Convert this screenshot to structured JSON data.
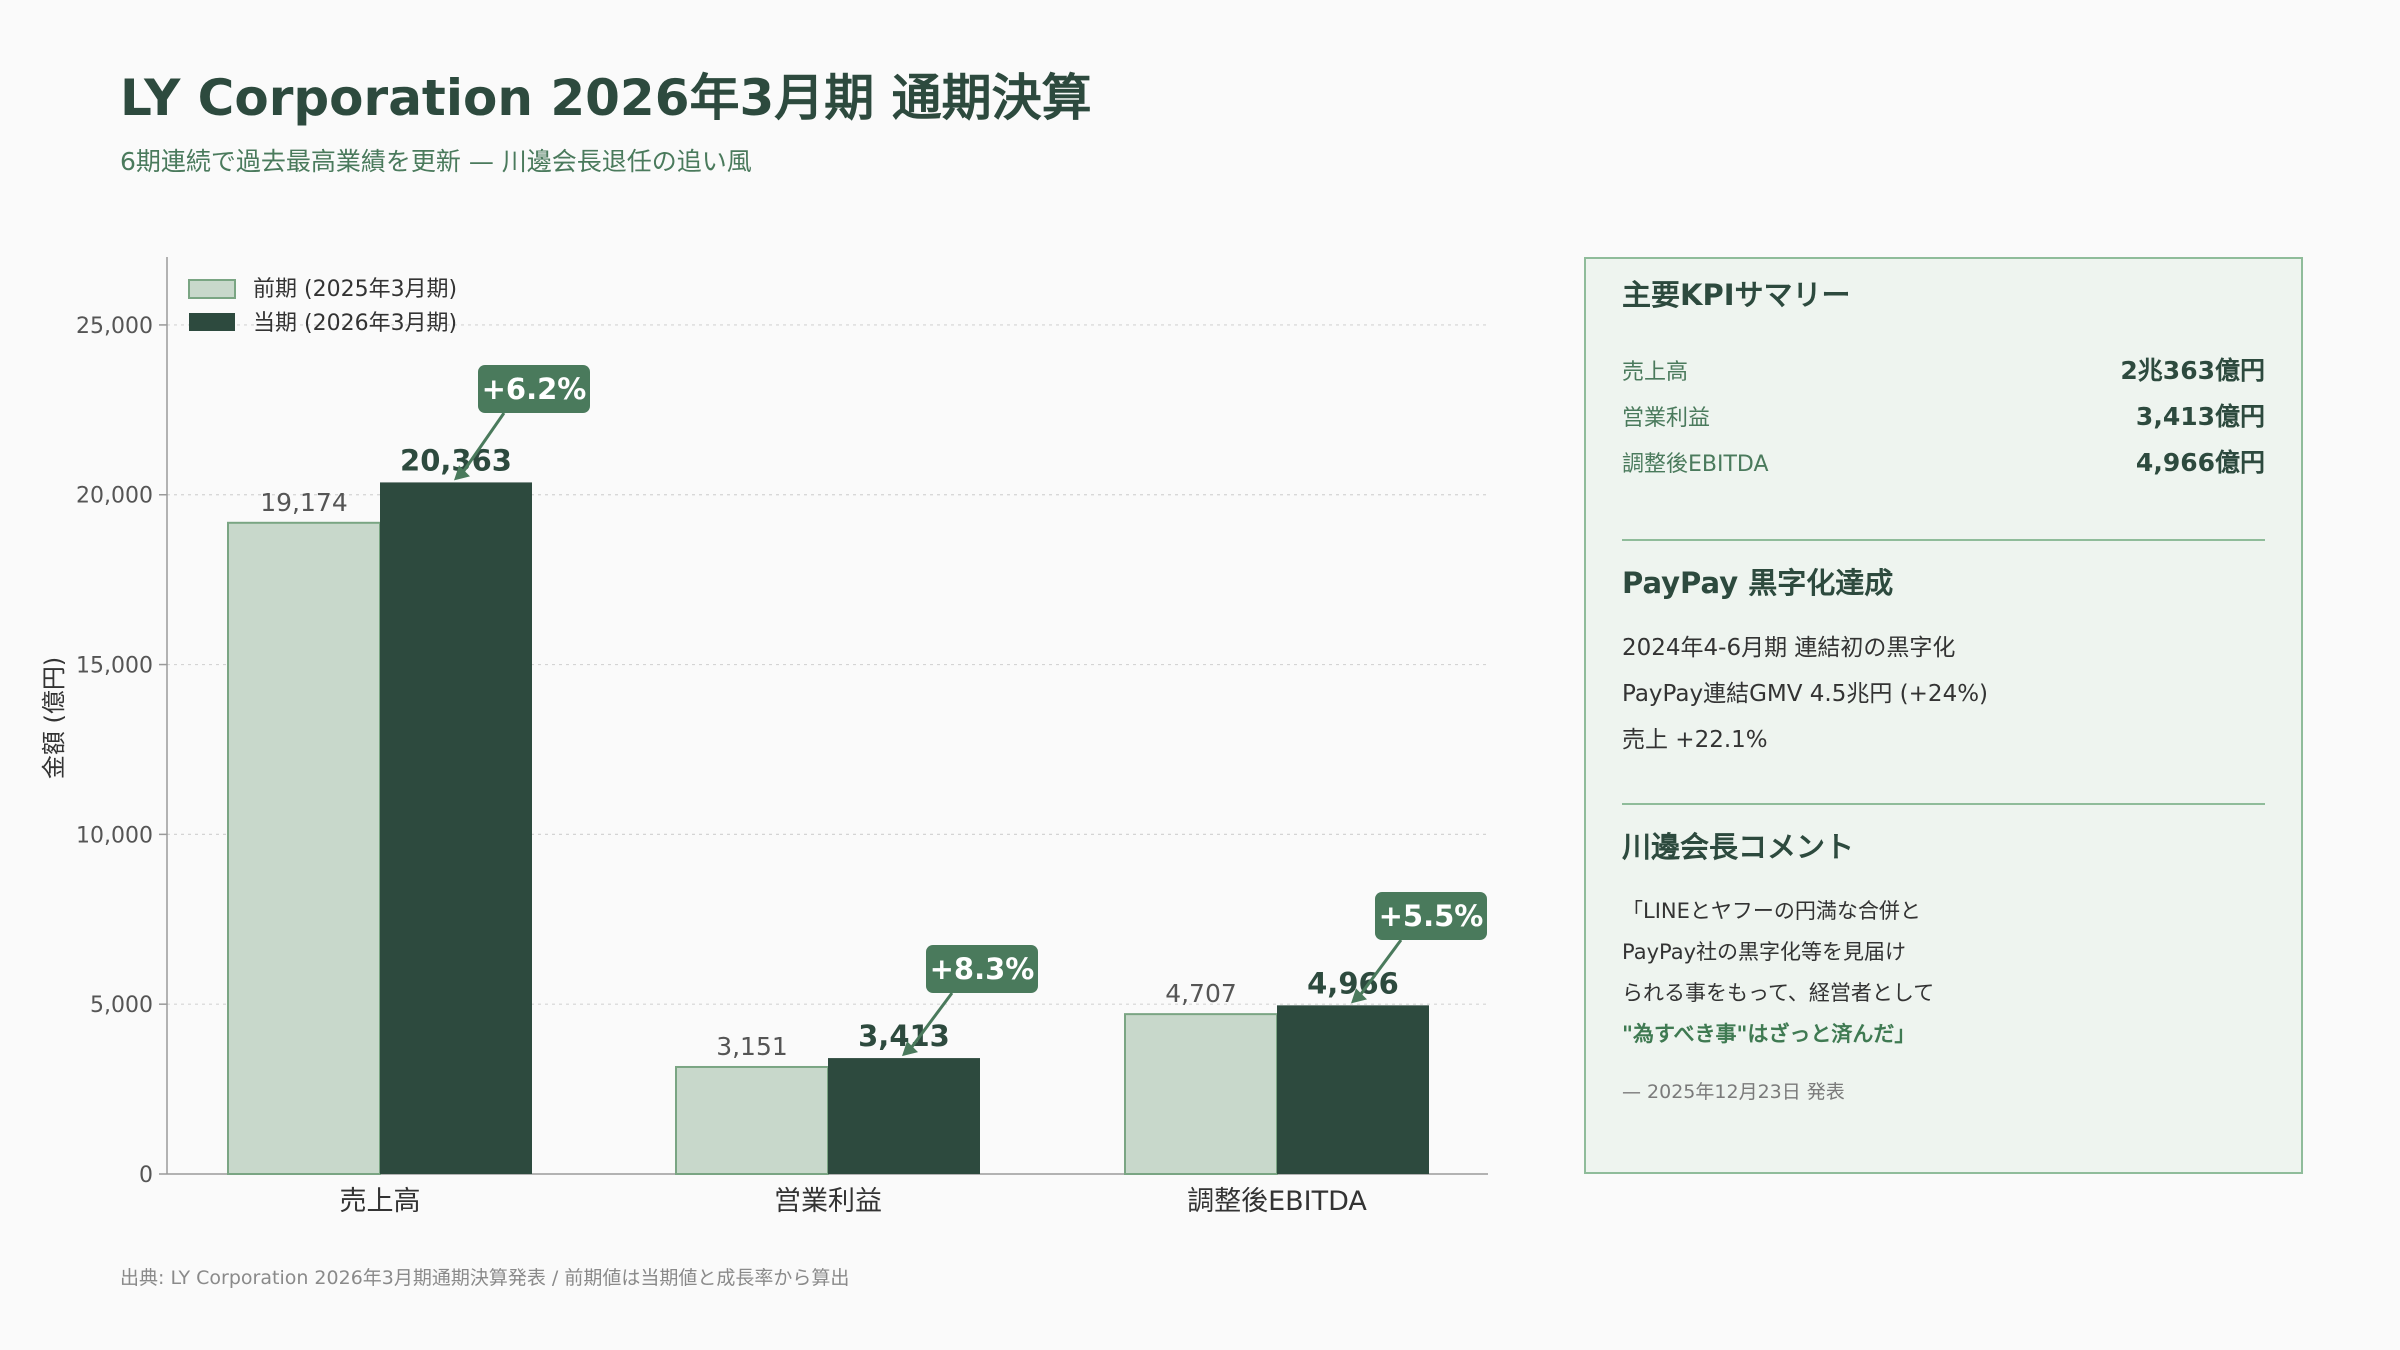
{
  "title": "LY Corporation 2026年3月期 通期決算",
  "subtitle": "6期連続で過去最高業績を更新 — 川邊会長退任の追い風",
  "footer": "出典: LY Corporation 2026年3月期通期決算発表 / 前期値は当期値と成長率から算出",
  "colors": {
    "prior": "#c8d8cb",
    "prior_border": "#7aa583",
    "current": "#2d4a3e",
    "badge": "#4a7a5c",
    "accent": "#3f7a52"
  },
  "chart_data": {
    "type": "bar",
    "categories": [
      "売上高",
      "営業利益",
      "調整後EBITDA"
    ],
    "series": [
      {
        "name": "前期 (2025年3月期)",
        "values": [
          19174,
          3151,
          4707
        ],
        "labels": [
          "19,174",
          "3,151",
          "4,707"
        ]
      },
      {
        "name": "当期 (2026年3月期)",
        "values": [
          20363,
          3413,
          4966
        ],
        "labels": [
          "20,363",
          "3,413",
          "4,966"
        ]
      }
    ],
    "growth_badges": [
      "+6.2%",
      "+8.3%",
      "+5.5%"
    ],
    "ylabel": "金額 (億円)",
    "ylim": [
      0,
      27000
    ],
    "yticks": [
      0,
      5000,
      10000,
      15000,
      20000,
      25000
    ],
    "ytick_labels": [
      "0",
      "5,000",
      "10,000",
      "15,000",
      "20,000",
      "25,000"
    ],
    "grid": true,
    "legend": "top-left"
  },
  "kpi": {
    "title": "主要KPIサマリー",
    "rows": [
      {
        "label": "売上高",
        "value": "2兆363億円"
      },
      {
        "label": "営業利益",
        "value": "3,413億円"
      },
      {
        "label": "調整後EBITDA",
        "value": "4,966億円"
      }
    ]
  },
  "paypay": {
    "title": "PayPay 黒字化達成",
    "lines": [
      "2024年4-6月期 連結初の黒字化",
      "PayPay連結GMV 4.5兆円 (+24%)",
      "売上 +22.1%"
    ]
  },
  "comment": {
    "title": "川邊会長コメント",
    "lines": [
      "「LINEとヤフーの円満な合併と",
      "PayPay社の黒字化等を見届け",
      "られる事をもって、経営者として"
    ],
    "emphasis": "\"為すべき事\"はざっと済んだ」",
    "date": "— 2025年12月23日 発表"
  }
}
